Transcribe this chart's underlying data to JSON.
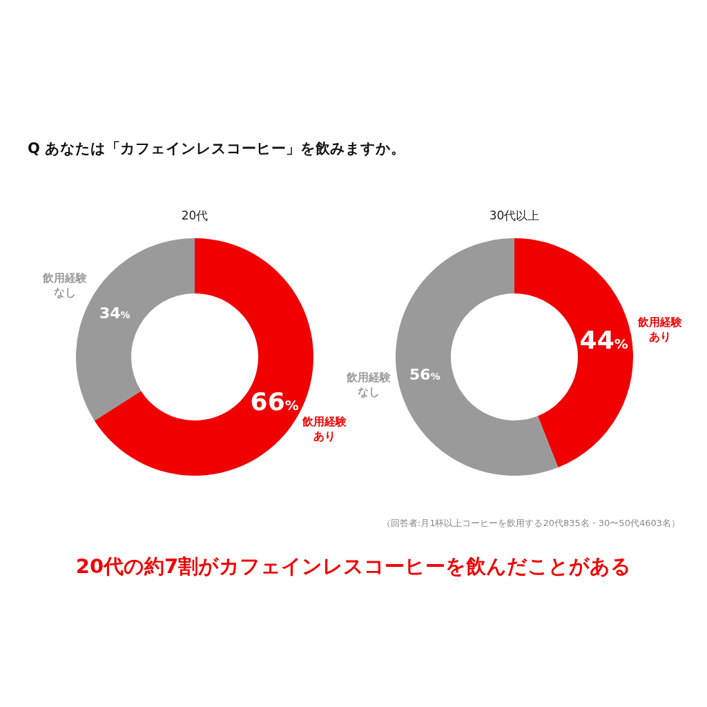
{
  "chart_data": [
    {
      "type": "donut",
      "title": "20代",
      "annotations": [
        "Q あなたは「カフェインレスコーヒー」を飲みますか。"
      ],
      "categories": [
        "飲用経験あり",
        "飲用経験なし"
      ],
      "values": [
        66,
        34
      ],
      "colors": [
        "#f00000",
        "#9a9a9a"
      ],
      "value_labels": [
        "66%",
        "34%"
      ]
    },
    {
      "type": "donut",
      "title": "30代以上",
      "annotations": [
        "（回答者:月1杯以上コーヒーを飲用する20代835名・30〜50代4603名）",
        "20代の約7割がカフェインレスコーヒーを飲んだことがある"
      ],
      "categories": [
        "飲用経験あり",
        "飲用経験なし"
      ],
      "values": [
        44,
        56
      ],
      "colors": [
        "#f00000",
        "#9a9a9a"
      ],
      "value_labels": [
        "44%",
        "56%"
      ]
    }
  ]
}
